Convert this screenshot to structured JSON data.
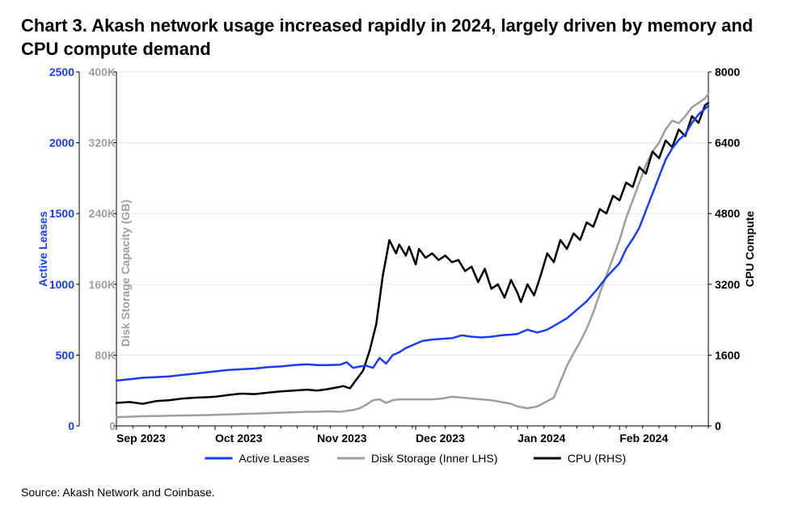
{
  "title": "Chart 3. Akash network usage increased rapidly in 2024, largely driven by memory and CPU compute demand",
  "source": "Source: Akash Network and Coinbase.",
  "chart": {
    "type": "line",
    "background_color": "#ffffff",
    "grid_color": "#e6e6e6",
    "axis_color": "#000000",
    "line_width": 2.5,
    "x": {
      "label": "",
      "ticks": [
        "Sep 2023",
        "Oct 2023",
        "Nov 2023",
        "Dec 2023",
        "Jan 2024",
        "Feb 2024"
      ],
      "tick_positions": [
        0,
        30,
        61,
        91,
        122,
        153
      ],
      "domain": [
        0,
        180
      ]
    },
    "y_left_outer": {
      "label": "Active Leases",
      "label_color": "#1a3cff",
      "tick_labels": [
        "0",
        "500",
        "1000",
        "1500",
        "2000",
        "2500"
      ],
      "tick_values": [
        0,
        500,
        1000,
        1500,
        2000,
        2500
      ],
      "domain": [
        0,
        2500
      ],
      "color": "#1a3cff"
    },
    "y_left_inner": {
      "label": "Disk Storage Capacity (GB)",
      "label_color": "#9e9e9e",
      "tick_labels": [
        "0",
        "80K",
        "160K",
        "240K",
        "320K",
        "400K"
      ],
      "tick_values": [
        0,
        80000,
        160000,
        240000,
        320000,
        400000
      ],
      "domain": [
        0,
        400000
      ],
      "color": "#9e9e9e"
    },
    "y_right": {
      "label": "CPU Compute",
      "label_color": "#000000",
      "tick_labels": [
        "0",
        "1600",
        "3200",
        "4800",
        "6400",
        "8000"
      ],
      "tick_values": [
        0,
        1600,
        3200,
        4800,
        6400,
        8000
      ],
      "domain": [
        0,
        8000
      ],
      "color": "#000000"
    },
    "legend": {
      "items": [
        {
          "label": "Active Leases",
          "color": "#1a3cff"
        },
        {
          "label": "Disk Storage (Inner LHS)",
          "color": "#9e9e9e"
        },
        {
          "label": "CPU (RHS)",
          "color": "#000000"
        }
      ]
    },
    "series": {
      "active_leases": {
        "axis": "y_left_outer",
        "color": "#1a3cff",
        "data": [
          [
            0,
            320
          ],
          [
            4,
            330
          ],
          [
            8,
            340
          ],
          [
            12,
            345
          ],
          [
            16,
            350
          ],
          [
            20,
            360
          ],
          [
            24,
            370
          ],
          [
            28,
            380
          ],
          [
            30,
            385
          ],
          [
            34,
            395
          ],
          [
            38,
            400
          ],
          [
            42,
            405
          ],
          [
            46,
            415
          ],
          [
            50,
            420
          ],
          [
            54,
            430
          ],
          [
            58,
            435
          ],
          [
            61,
            430
          ],
          [
            64,
            430
          ],
          [
            68,
            432
          ],
          [
            70,
            450
          ],
          [
            72,
            410
          ],
          [
            74,
            420
          ],
          [
            76,
            425
          ],
          [
            78,
            410
          ],
          [
            80,
            480
          ],
          [
            82,
            440
          ],
          [
            84,
            500
          ],
          [
            86,
            520
          ],
          [
            88,
            550
          ],
          [
            91,
            580
          ],
          [
            93,
            600
          ],
          [
            96,
            610
          ],
          [
            99,
            615
          ],
          [
            102,
            620
          ],
          [
            105,
            640
          ],
          [
            108,
            630
          ],
          [
            111,
            625
          ],
          [
            114,
            630
          ],
          [
            117,
            640
          ],
          [
            120,
            645
          ],
          [
            122,
            650
          ],
          [
            125,
            680
          ],
          [
            128,
            660
          ],
          [
            131,
            680
          ],
          [
            134,
            720
          ],
          [
            137,
            760
          ],
          [
            140,
            820
          ],
          [
            143,
            880
          ],
          [
            146,
            960
          ],
          [
            149,
            1050
          ],
          [
            153,
            1150
          ],
          [
            155,
            1250
          ],
          [
            157,
            1320
          ],
          [
            159,
            1400
          ],
          [
            161,
            1520
          ],
          [
            163,
            1640
          ],
          [
            165,
            1760
          ],
          [
            167,
            1880
          ],
          [
            169,
            1960
          ],
          [
            171,
            2020
          ],
          [
            173,
            2060
          ],
          [
            175,
            2140
          ],
          [
            177,
            2200
          ],
          [
            179,
            2240
          ],
          [
            180,
            2260
          ]
        ]
      },
      "disk_storage": {
        "axis": "y_left_inner",
        "color": "#9e9e9e",
        "data": [
          [
            0,
            10000
          ],
          [
            8,
            11000
          ],
          [
            16,
            11500
          ],
          [
            24,
            12000
          ],
          [
            30,
            12500
          ],
          [
            34,
            13000
          ],
          [
            42,
            14000
          ],
          [
            50,
            15000
          ],
          [
            58,
            16000
          ],
          [
            61,
            16000
          ],
          [
            64,
            16500
          ],
          [
            68,
            16000
          ],
          [
            72,
            18000
          ],
          [
            74,
            20000
          ],
          [
            76,
            24000
          ],
          [
            78,
            29000
          ],
          [
            80,
            30000
          ],
          [
            82,
            26000
          ],
          [
            84,
            29000
          ],
          [
            86,
            30000
          ],
          [
            88,
            30000
          ],
          [
            91,
            30000
          ],
          [
            93,
            30000
          ],
          [
            96,
            30000
          ],
          [
            99,
            31000
          ],
          [
            102,
            33000
          ],
          [
            105,
            32000
          ],
          [
            108,
            31000
          ],
          [
            111,
            30000
          ],
          [
            114,
            29000
          ],
          [
            117,
            27000
          ],
          [
            120,
            25000
          ],
          [
            122,
            22000
          ],
          [
            125,
            20000
          ],
          [
            128,
            22000
          ],
          [
            131,
            28000
          ],
          [
            133,
            32000
          ],
          [
            135,
            50000
          ],
          [
            137,
            68000
          ],
          [
            139,
            82000
          ],
          [
            141,
            95000
          ],
          [
            143,
            110000
          ],
          [
            145,
            128000
          ],
          [
            147,
            150000
          ],
          [
            149,
            170000
          ],
          [
            151,
            190000
          ],
          [
            153,
            210000
          ],
          [
            155,
            235000
          ],
          [
            157,
            255000
          ],
          [
            159,
            275000
          ],
          [
            161,
            295000
          ],
          [
            163,
            310000
          ],
          [
            165,
            320000
          ],
          [
            167,
            335000
          ],
          [
            169,
            345000
          ],
          [
            171,
            342000
          ],
          [
            173,
            350000
          ],
          [
            175,
            360000
          ],
          [
            177,
            365000
          ],
          [
            179,
            370000
          ],
          [
            180,
            375000
          ]
        ]
      },
      "cpu": {
        "axis": "y_right",
        "color": "#000000",
        "data": [
          [
            0,
            520
          ],
          [
            4,
            540
          ],
          [
            8,
            500
          ],
          [
            12,
            560
          ],
          [
            16,
            580
          ],
          [
            20,
            620
          ],
          [
            24,
            640
          ],
          [
            28,
            650
          ],
          [
            30,
            660
          ],
          [
            34,
            700
          ],
          [
            38,
            730
          ],
          [
            42,
            720
          ],
          [
            46,
            750
          ],
          [
            50,
            780
          ],
          [
            54,
            800
          ],
          [
            58,
            820
          ],
          [
            61,
            800
          ],
          [
            64,
            830
          ],
          [
            67,
            870
          ],
          [
            69,
            900
          ],
          [
            71,
            850
          ],
          [
            73,
            1050
          ],
          [
            75,
            1250
          ],
          [
            77,
            1700
          ],
          [
            79,
            2300
          ],
          [
            81,
            3400
          ],
          [
            82,
            3800
          ],
          [
            83,
            4200
          ],
          [
            85,
            3900
          ],
          [
            86,
            4100
          ],
          [
            88,
            3850
          ],
          [
            89,
            4050
          ],
          [
            91,
            3650
          ],
          [
            92,
            4000
          ],
          [
            94,
            3800
          ],
          [
            96,
            3900
          ],
          [
            98,
            3750
          ],
          [
            100,
            3850
          ],
          [
            102,
            3700
          ],
          [
            104,
            3750
          ],
          [
            106,
            3500
          ],
          [
            108,
            3600
          ],
          [
            110,
            3250
          ],
          [
            112,
            3550
          ],
          [
            114,
            3100
          ],
          [
            116,
            3200
          ],
          [
            118,
            2900
          ],
          [
            120,
            3300
          ],
          [
            122,
            3000
          ],
          [
            123,
            2800
          ],
          [
            125,
            3200
          ],
          [
            127,
            2950
          ],
          [
            129,
            3400
          ],
          [
            131,
            3900
          ],
          [
            133,
            3700
          ],
          [
            135,
            4200
          ],
          [
            137,
            4000
          ],
          [
            139,
            4350
          ],
          [
            141,
            4200
          ],
          [
            143,
            4600
          ],
          [
            145,
            4500
          ],
          [
            147,
            4900
          ],
          [
            149,
            4800
          ],
          [
            151,
            5200
          ],
          [
            153,
            5100
          ],
          [
            155,
            5500
          ],
          [
            157,
            5400
          ],
          [
            159,
            5850
          ],
          [
            161,
            5700
          ],
          [
            163,
            6200
          ],
          [
            165,
            6050
          ],
          [
            167,
            6450
          ],
          [
            169,
            6300
          ],
          [
            171,
            6700
          ],
          [
            173,
            6550
          ],
          [
            175,
            7000
          ],
          [
            177,
            6850
          ],
          [
            179,
            7250
          ],
          [
            180,
            7300
          ]
        ]
      }
    }
  }
}
